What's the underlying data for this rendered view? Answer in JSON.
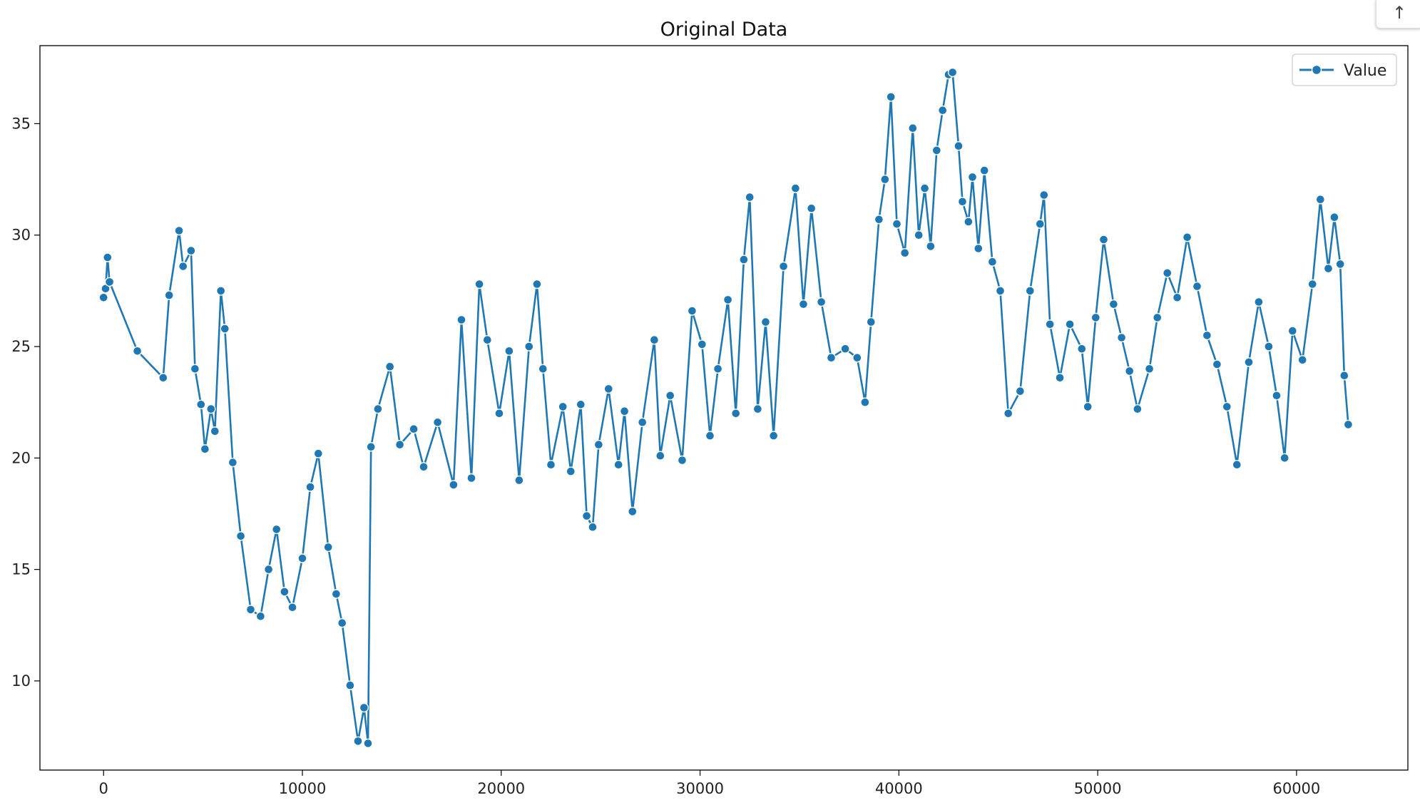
{
  "chart_data": {
    "type": "line",
    "title": "Original Data",
    "xlabel": "",
    "ylabel": "",
    "xlim": [
      -3200,
      65600
    ],
    "ylim": [
      6,
      38.5
    ],
    "x_ticks": [
      0,
      10000,
      20000,
      30000,
      40000,
      50000,
      60000
    ],
    "y_ticks": [
      10,
      15,
      20,
      25,
      30,
      35
    ],
    "grid": false,
    "legend_position": "top-right",
    "markers": true,
    "series": [
      {
        "name": "Value",
        "color": "#1f77b4",
        "points": [
          [
            0,
            27.2
          ],
          [
            100,
            27.6
          ],
          [
            200,
            29.0
          ],
          [
            300,
            27.9
          ],
          [
            1700,
            24.8
          ],
          [
            3000,
            23.6
          ],
          [
            3300,
            27.3
          ],
          [
            3800,
            30.2
          ],
          [
            4000,
            28.6
          ],
          [
            4400,
            29.3
          ],
          [
            4600,
            24.0
          ],
          [
            4900,
            22.4
          ],
          [
            5100,
            20.4
          ],
          [
            5400,
            22.2
          ],
          [
            5600,
            21.2
          ],
          [
            5900,
            27.5
          ],
          [
            6100,
            25.8
          ],
          [
            6500,
            19.8
          ],
          [
            6900,
            16.5
          ],
          [
            7400,
            13.2
          ],
          [
            7900,
            12.9
          ],
          [
            8300,
            15.0
          ],
          [
            8700,
            16.8
          ],
          [
            9100,
            14.0
          ],
          [
            9500,
            13.3
          ],
          [
            10000,
            15.5
          ],
          [
            10400,
            18.7
          ],
          [
            10800,
            20.2
          ],
          [
            11300,
            16.0
          ],
          [
            11700,
            13.9
          ],
          [
            12000,
            12.6
          ],
          [
            12400,
            9.8
          ],
          [
            12800,
            7.3
          ],
          [
            13100,
            8.8
          ],
          [
            13300,
            7.2
          ],
          [
            13450,
            20.5
          ],
          [
            13800,
            22.2
          ],
          [
            14400,
            24.1
          ],
          [
            14900,
            20.6
          ],
          [
            15600,
            21.3
          ],
          [
            16100,
            19.6
          ],
          [
            16800,
            21.6
          ],
          [
            17600,
            18.8
          ],
          [
            18000,
            26.2
          ],
          [
            18500,
            19.1
          ],
          [
            18900,
            27.8
          ],
          [
            19300,
            25.3
          ],
          [
            19900,
            22.0
          ],
          [
            20400,
            24.8
          ],
          [
            20900,
            19.0
          ],
          [
            21400,
            25.0
          ],
          [
            21800,
            27.8
          ],
          [
            22100,
            24.0
          ],
          [
            22500,
            19.7
          ],
          [
            23100,
            22.3
          ],
          [
            23500,
            19.4
          ],
          [
            24000,
            22.4
          ],
          [
            24300,
            17.4
          ],
          [
            24600,
            16.9
          ],
          [
            24900,
            20.6
          ],
          [
            25400,
            23.1
          ],
          [
            25900,
            19.7
          ],
          [
            26200,
            22.1
          ],
          [
            26600,
            17.6
          ],
          [
            27100,
            21.6
          ],
          [
            27700,
            25.3
          ],
          [
            28000,
            20.1
          ],
          [
            28500,
            22.8
          ],
          [
            29100,
            19.9
          ],
          [
            29600,
            26.6
          ],
          [
            30100,
            25.1
          ],
          [
            30500,
            21.0
          ],
          [
            30900,
            24.0
          ],
          [
            31400,
            27.1
          ],
          [
            31800,
            22.0
          ],
          [
            32200,
            28.9
          ],
          [
            32500,
            31.7
          ],
          [
            32900,
            22.2
          ],
          [
            33300,
            26.1
          ],
          [
            33700,
            21.0
          ],
          [
            34200,
            28.6
          ],
          [
            34800,
            32.1
          ],
          [
            35200,
            26.9
          ],
          [
            35600,
            31.2
          ],
          [
            36100,
            27.0
          ],
          [
            36600,
            24.5
          ],
          [
            37300,
            24.9
          ],
          [
            37900,
            24.5
          ],
          [
            38300,
            22.5
          ],
          [
            38600,
            26.1
          ],
          [
            39000,
            30.7
          ],
          [
            39300,
            32.5
          ],
          [
            39600,
            36.2
          ],
          [
            39900,
            30.5
          ],
          [
            40300,
            29.2
          ],
          [
            40700,
            34.8
          ],
          [
            41000,
            30.0
          ],
          [
            41300,
            32.1
          ],
          [
            41600,
            29.5
          ],
          [
            41900,
            33.8
          ],
          [
            42200,
            35.6
          ],
          [
            42500,
            37.2
          ],
          [
            42700,
            37.3
          ],
          [
            43000,
            34.0
          ],
          [
            43200,
            31.5
          ],
          [
            43500,
            30.6
          ],
          [
            43700,
            32.6
          ],
          [
            44000,
            29.4
          ],
          [
            44300,
            32.9
          ],
          [
            44700,
            28.8
          ],
          [
            45100,
            27.5
          ],
          [
            45500,
            22.0
          ],
          [
            46100,
            23.0
          ],
          [
            46600,
            27.5
          ],
          [
            47100,
            30.5
          ],
          [
            47300,
            31.8
          ],
          [
            47600,
            26.0
          ],
          [
            48100,
            23.6
          ],
          [
            48600,
            26.0
          ],
          [
            49200,
            24.9
          ],
          [
            49500,
            22.3
          ],
          [
            49900,
            26.3
          ],
          [
            50300,
            29.8
          ],
          [
            50800,
            26.9
          ],
          [
            51200,
            25.4
          ],
          [
            51600,
            23.9
          ],
          [
            52000,
            22.2
          ],
          [
            52600,
            24.0
          ],
          [
            53000,
            26.3
          ],
          [
            53500,
            28.3
          ],
          [
            54000,
            27.2
          ],
          [
            54500,
            29.9
          ],
          [
            55000,
            27.7
          ],
          [
            55500,
            25.5
          ],
          [
            56000,
            24.2
          ],
          [
            56500,
            22.3
          ],
          [
            57000,
            19.7
          ],
          [
            57600,
            24.3
          ],
          [
            58100,
            27.0
          ],
          [
            58600,
            25.0
          ],
          [
            59000,
            22.8
          ],
          [
            59400,
            20.0
          ],
          [
            59800,
            25.7
          ],
          [
            60300,
            24.4
          ],
          [
            60800,
            27.8
          ],
          [
            61200,
            31.6
          ],
          [
            61600,
            28.5
          ],
          [
            61900,
            30.8
          ],
          [
            62200,
            28.7
          ],
          [
            62400,
            23.7
          ],
          [
            62600,
            21.5
          ]
        ]
      }
    ]
  },
  "ui": {
    "scroll_top_icon": "↑"
  }
}
